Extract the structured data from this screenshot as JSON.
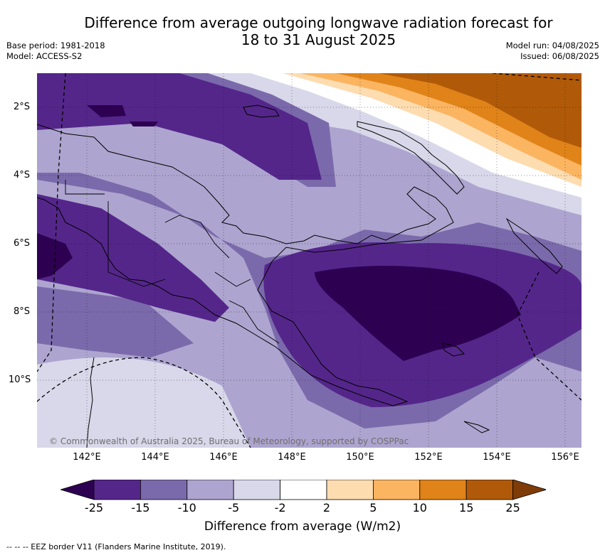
{
  "title_line1": "Difference from average outgoing longwave radiation forecast for",
  "title_line2": "18 to 31 August 2025",
  "base_period": "Base period: 1981-2018",
  "model": "Model: ACCESS-S2",
  "model_run": "Model run: 04/08/2025",
  "issued": "Issued: 06/08/2025",
  "lat_labels": [
    "2°S",
    "4°S",
    "6°S",
    "8°S",
    "10°S"
  ],
  "lon_labels": [
    "142°E",
    "144°E",
    "146°E",
    "148°E",
    "150°E",
    "152°E",
    "154°E",
    "156°E"
  ],
  "copyright": "© Commonwealth of Australia 2025, Bureau of Meteorology, supported by COSPPac",
  "colorbar": {
    "label": "Difference from average (W/m2)",
    "ticks": [
      "-25",
      "-15",
      "-10",
      "-5",
      "-2",
      "2",
      "5",
      "10",
      "15",
      "25"
    ],
    "colors": [
      "#2e0052",
      "#54268a",
      "#7b6aab",
      "#ada5cf",
      "#d8d8ea",
      "#ffffff",
      "#fddcb0",
      "#fbb460",
      "#e08319",
      "#b05a09",
      "#7f3b08"
    ]
  },
  "footer": "--  --  -- EEZ border V11 (Flanders Marine Institute, 2019)."
}
